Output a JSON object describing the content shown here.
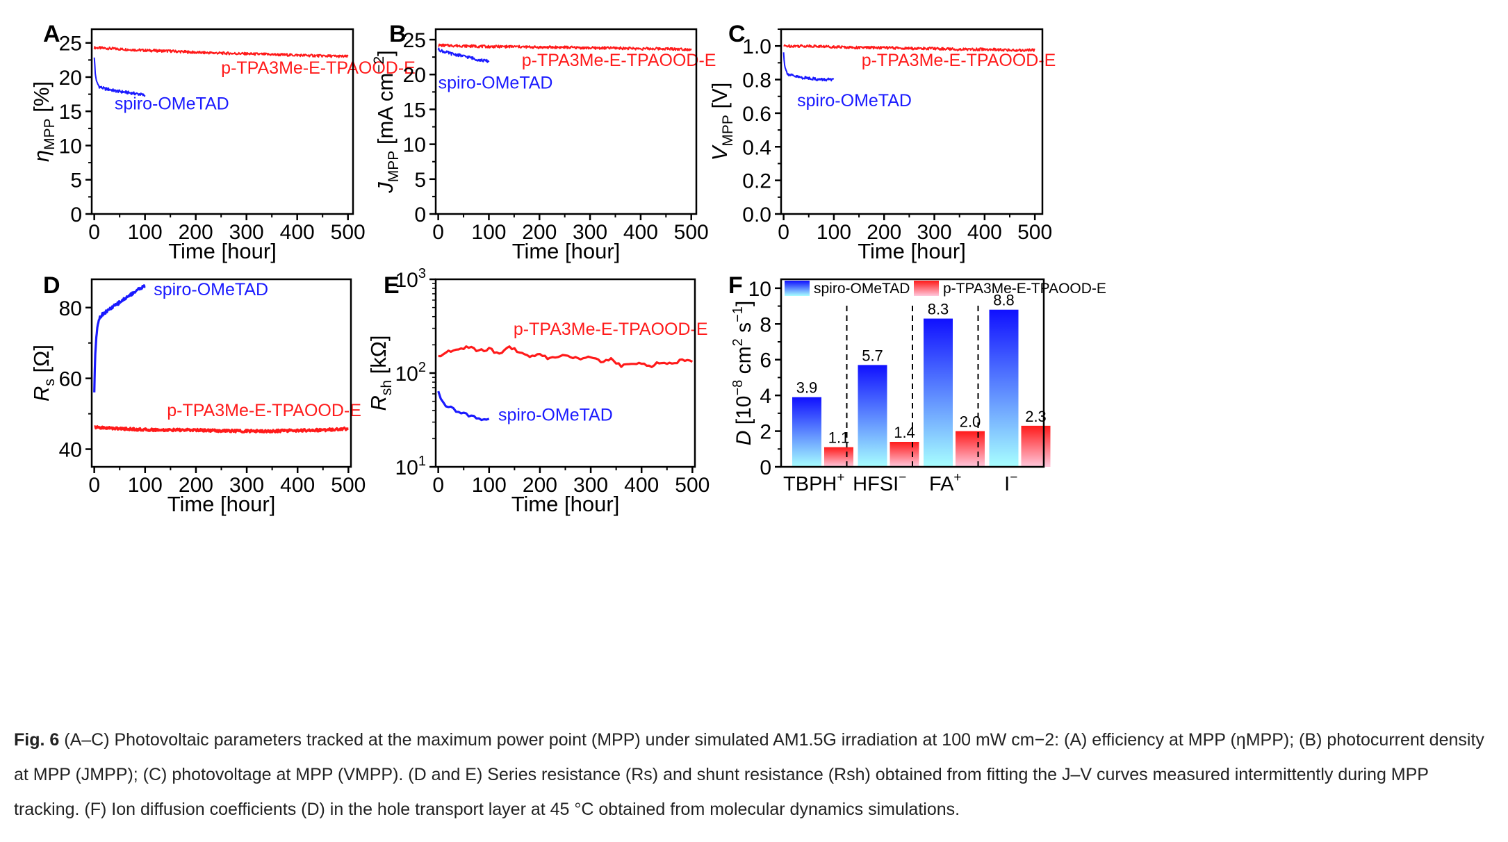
{
  "chart_data": [
    {
      "panel": "A",
      "type": "line",
      "ylabel": "ηMPP [%]",
      "ylabel_main": "η",
      "ylabel_sub": "MPP",
      "ylabel_rest": " [%]",
      "xlabel": "Time [hour]",
      "xlim": [
        -5,
        510
      ],
      "ylim": [
        0,
        27
      ],
      "xticks": [
        0,
        100,
        200,
        300,
        400,
        500
      ],
      "yticks": [
        0,
        5,
        10,
        15,
        20,
        25
      ],
      "yscale": "linear",
      "series": [
        {
          "name": "p-TPA3Me-E-TPAOOD-E",
          "color": "#ff1a1a",
          "x": [
            0,
            50,
            100,
            150,
            200,
            250,
            300,
            350,
            400,
            450,
            500
          ],
          "y": [
            24.3,
            24.1,
            23.9,
            23.8,
            23.6,
            23.5,
            23.4,
            23.3,
            23.2,
            23.1,
            23.0
          ]
        },
        {
          "name": "spiro-OMeTAD",
          "color": "#1a1aff",
          "x": [
            0,
            2,
            5,
            10,
            20,
            30,
            40,
            50,
            60,
            70,
            80,
            90,
            100
          ],
          "y": [
            23.0,
            20.5,
            19.2,
            18.6,
            18.3,
            18.2,
            18.0,
            17.9,
            17.8,
            17.7,
            17.6,
            17.5,
            17.3
          ]
        }
      ],
      "annotations": [
        {
          "text": "p-TPA3Me-E-TPAOOD-E",
          "color": "#ff1a1a",
          "x": 250,
          "y": 20.5
        },
        {
          "text": "spiro-OMeTAD",
          "color": "#1a1aff",
          "x": 40,
          "y": 15.3
        }
      ]
    },
    {
      "panel": "B",
      "type": "line",
      "ylabel": "JMPP [mA cm−2]",
      "ylabel_main": "J",
      "ylabel_sub": "MPP",
      "ylabel_rest": " [mA cm",
      "ylabel_sup": "−2",
      "ylabel_end": "]",
      "xlabel": "Time [hour]",
      "xlim": [
        -5,
        510
      ],
      "ylim": [
        0,
        26.5
      ],
      "xticks": [
        0,
        100,
        200,
        300,
        400,
        500
      ],
      "yticks": [
        0,
        5,
        10,
        15,
        20,
        25
      ],
      "yscale": "linear",
      "series": [
        {
          "name": "p-TPA3Me-E-TPAOOD-E",
          "color": "#ff1a1a",
          "x": [
            0,
            50,
            100,
            150,
            200,
            250,
            300,
            350,
            400,
            450,
            500
          ],
          "y": [
            24.2,
            24.1,
            24.0,
            24.0,
            23.9,
            23.9,
            23.8,
            23.8,
            23.7,
            23.7,
            23.6
          ]
        },
        {
          "name": "spiro-OMeTAD",
          "color": "#1a1aff",
          "x": [
            0,
            10,
            20,
            30,
            40,
            50,
            60,
            70,
            80,
            90,
            100
          ],
          "y": [
            23.6,
            23.3,
            23.1,
            22.9,
            22.8,
            22.6,
            22.5,
            22.3,
            22.1,
            22.0,
            21.9
          ]
        }
      ],
      "annotations": [
        {
          "text": "p-TPA3Me-E-TPAOOD-E",
          "color": "#ff1a1a",
          "x": 165,
          "y": 21.2
        },
        {
          "text": "spiro-OMeTAD",
          "color": "#1a1aff",
          "x": 0,
          "y": 18.0
        }
      ]
    },
    {
      "panel": "C",
      "type": "line",
      "ylabel": "VMPP [V]",
      "ylabel_main": "V",
      "ylabel_sub": "MPP",
      "ylabel_rest": " [V]",
      "xlabel": "Time [hour]",
      "xlim": [
        -5,
        515
      ],
      "ylim": [
        0,
        1.1
      ],
      "xticks": [
        0,
        100,
        200,
        300,
        400,
        500
      ],
      "yticks": [
        0.0,
        0.2,
        0.4,
        0.6,
        0.8,
        1.0
      ],
      "yscale": "linear",
      "series": [
        {
          "name": "p-TPA3Me-E-TPAOOD-E",
          "color": "#ff1a1a",
          "x": [
            0,
            50,
            100,
            150,
            200,
            250,
            300,
            350,
            400,
            450,
            500
          ],
          "y": [
            1.0,
            1.0,
            0.995,
            0.99,
            0.99,
            0.985,
            0.985,
            0.98,
            0.98,
            0.975,
            0.975
          ]
        },
        {
          "name": "spiro-OMeTAD",
          "color": "#1a1aff",
          "x": [
            0,
            2,
            5,
            10,
            20,
            30,
            40,
            50,
            60,
            70,
            80,
            90,
            100
          ],
          "y": [
            0.96,
            0.89,
            0.85,
            0.83,
            0.82,
            0.815,
            0.81,
            0.81,
            0.805,
            0.8,
            0.8,
            0.8,
            0.795
          ]
        }
      ],
      "annotations": [
        {
          "text": "p-TPA3Me-E-TPAOOD-E",
          "color": "#ff1a1a",
          "x": 155,
          "y": 0.88
        },
        {
          "text": "spiro-OMeTAD",
          "color": "#1a1aff",
          "x": 27,
          "y": 0.64
        }
      ]
    },
    {
      "panel": "D",
      "type": "line",
      "ylabel": "Rs [Ω]",
      "ylabel_main": "R",
      "ylabel_sub": "s",
      "ylabel_rest": " [Ω]",
      "xlabel": "Time [hour]",
      "xlim": [
        -5,
        505
      ],
      "ylim": [
        35,
        88
      ],
      "xticks": [
        0,
        100,
        200,
        300,
        400,
        500
      ],
      "yticks": [
        40,
        60,
        80
      ],
      "yscale": "linear",
      "series": [
        {
          "name": "p-TPA3Me-E-TPAOOD-E",
          "color": "#ff1a1a",
          "x": [
            0,
            50,
            100,
            150,
            200,
            250,
            300,
            350,
            400,
            450,
            500
          ],
          "y": [
            46.2,
            45.8,
            45.5,
            45.4,
            45.4,
            45.2,
            45.1,
            45.1,
            45.3,
            45.4,
            45.8
          ]
        },
        {
          "name": "spiro-OMeTAD",
          "color": "#1a1aff",
          "x": [
            0,
            1,
            2,
            4,
            7,
            10,
            15,
            20,
            30,
            40,
            50,
            60,
            70,
            80,
            90,
            100
          ],
          "y": [
            56.2,
            62.0,
            67.0,
            72.0,
            75.5,
            77.0,
            78.0,
            78.5,
            79.5,
            80.5,
            81.5,
            82.5,
            83.5,
            84.5,
            85.5,
            86.0
          ]
        }
      ],
      "annotations": [
        {
          "text": "spiro-OMeTAD",
          "color": "#1a1aff",
          "x": 117,
          "y": 83.5
        },
        {
          "text": "p-TPA3Me-E-TPAOOD-E",
          "color": "#ff1a1a",
          "x": 143,
          "y": 49.3
        }
      ]
    },
    {
      "panel": "E",
      "type": "line",
      "ylabel": "Rsh [kΩ]",
      "ylabel_main": "R",
      "ylabel_sub": "sh",
      "ylabel_rest": " [kΩ]",
      "xlabel": "Time [hour]",
      "xlim": [
        -5,
        505
      ],
      "ylim": [
        10,
        1000
      ],
      "yscale": "log",
      "xticks": [
        0,
        100,
        200,
        300,
        400,
        500
      ],
      "yticks": [
        10,
        100,
        1000
      ],
      "ytick_labels": [
        {
          "base": "10",
          "exp": "1"
        },
        {
          "base": "10",
          "exp": "2"
        },
        {
          "base": "10",
          "exp": "3"
        }
      ],
      "series": [
        {
          "name": "p-TPA3Me-E-TPAOOD-E",
          "color": "#ff1a1a",
          "x": [
            0,
            20,
            40,
            60,
            80,
            100,
            120,
            140,
            160,
            180,
            200,
            220,
            240,
            260,
            280,
            300,
            320,
            340,
            360,
            380,
            400,
            420,
            440,
            460,
            480,
            500
          ],
          "y": [
            150,
            168,
            180,
            190,
            172,
            182,
            158,
            190,
            165,
            152,
            158,
            142,
            155,
            150,
            138,
            148,
            132,
            142,
            118,
            125,
            128,
            120,
            132,
            124,
            138,
            130
          ]
        },
        {
          "name": "spiro-OMeTAD",
          "color": "#1a1aff",
          "x": [
            0,
            5,
            10,
            20,
            30,
            40,
            50,
            60,
            70,
            80,
            90,
            100
          ],
          "y": [
            62,
            52,
            47,
            44,
            41,
            39,
            37,
            35,
            34,
            33,
            32,
            32
          ]
        }
      ],
      "annotations": [
        {
          "text": "p-TPA3Me-E-TPAOOD-E",
          "color": "#ff1a1a",
          "x": 148,
          "y": 255
        },
        {
          "text": "spiro-OMeTAD",
          "color": "#1a1aff",
          "x": 118,
          "y": 31
        }
      ]
    },
    {
      "panel": "F",
      "type": "bar",
      "ylabel": "D [10−8 cm2 s−1]",
      "ylim": [
        0,
        10.5
      ],
      "yticks": [
        0,
        2,
        4,
        6,
        8,
        10
      ],
      "categories": [
        {
          "base": "TBPH",
          "sup": "+"
        },
        {
          "base": "HFSI",
          "sup": "−"
        },
        {
          "base": "FA",
          "sup": "+"
        },
        {
          "base": "I",
          "sup": "−"
        }
      ],
      "series": [
        {
          "name": "spiro-OMeTAD",
          "color_top": "#1010ff",
          "color_bottom": "#a8ffff",
          "values": [
            3.9,
            5.7,
            8.3,
            8.8
          ],
          "labels": [
            "3.9",
            "5.7",
            "8.3",
            "8.8"
          ]
        },
        {
          "name": "p-TPA3Me-E-TPAOOD-E",
          "color_top": "#ff1a1a",
          "color_bottom": "#ffc8dc",
          "values": [
            1.1,
            1.4,
            2.0,
            2.3
          ],
          "labels": [
            "1.1",
            "1.4",
            "2.0",
            "2.3"
          ]
        }
      ],
      "legend": "top"
    }
  ],
  "panel_letters": [
    "A",
    "B",
    "C",
    "D",
    "E",
    "F"
  ],
  "caption": {
    "fig_label": "Fig. 6",
    "text": "(A–C) Photovoltaic parameters tracked at the maximum power point (MPP) under simulated AM1.5G irradiation at 100 mW cm−2: (A) efficiency at MPP (ηMPP); (B) photocurrent density at MPP (JMPP); (C) photovoltage at MPP (VMPP). (D and E) Series resistance (Rs) and shunt resistance (Rsh) obtained from fitting the J–V curves measured intermittently during MPP tracking. (F) Ion diffusion coefficients (D) in the hole transport layer at 45 °C obtained from molecular dynamics simulations."
  }
}
